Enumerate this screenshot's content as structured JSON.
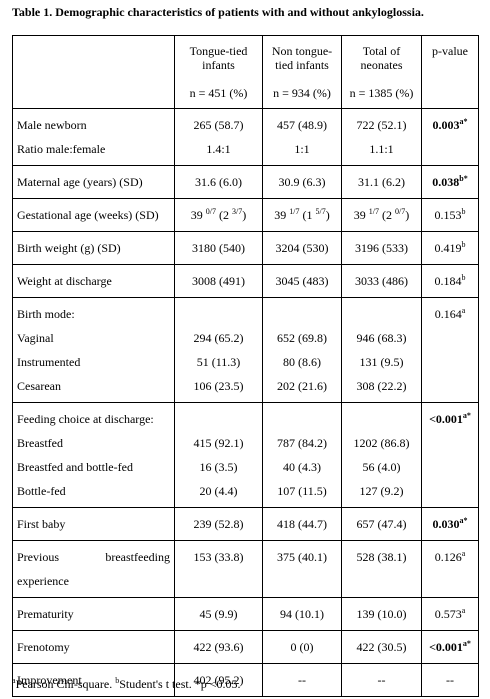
{
  "title": "Table 1. Demographic characteristics of patients with and without ankyloglossia.",
  "table": {
    "columns": [
      {
        "name": null,
        "n": null
      },
      {
        "name": "Tongue-tied infants",
        "n": "n = 451 (%)"
      },
      {
        "name": "Non tongue-tied infants",
        "n": "n = 934 (%)"
      },
      {
        "name": "Total of neonates",
        "n": "n = 1385 (%)"
      },
      {
        "name": "p-value",
        "n": null
      }
    ],
    "groups": [
      {
        "rows": [
          {
            "label": "Male newborn",
            "values": [
              "265 (58.7)",
              "457 (48.9)",
              "722 (52.1)",
              {
                "bold": true,
                "parts": [
                  "0.003",
                  {
                    "sup": "a*"
                  }
                ]
              }
            ]
          },
          {
            "label": "Ratio male:female",
            "values": [
              "1.4:1",
              "1:1",
              "1.1:1",
              null
            ]
          }
        ]
      },
      {
        "rows": [
          {
            "label": "Maternal age (years) (SD)",
            "values": [
              "31.6 (6.0)",
              "30.9 (6.3)",
              "31.1 (6.2)",
              {
                "bold": true,
                "parts": [
                  "0.038",
                  {
                    "sup": "b*"
                  }
                ]
              }
            ]
          }
        ]
      },
      {
        "rows": [
          {
            "label": "Gestational age (weeks) (SD)",
            "values": [
              {
                "parts": [
                  "39 ",
                  {
                    "sup": "0/7"
                  },
                  " (2 ",
                  {
                    "sup": "3/7"
                  },
                  ")"
                ]
              },
              {
                "parts": [
                  "39 ",
                  {
                    "sup": "1/7"
                  },
                  " (1 ",
                  {
                    "sup": "5/7"
                  },
                  ")"
                ]
              },
              {
                "parts": [
                  "39 ",
                  {
                    "sup": "1/7"
                  },
                  " (2 ",
                  {
                    "sup": "0/7"
                  },
                  ")"
                ]
              },
              {
                "parts": [
                  "0.153",
                  {
                    "sup": "b"
                  }
                ]
              }
            ]
          }
        ]
      },
      {
        "rows": [
          {
            "label": "Birth weight (g) (SD)",
            "values": [
              "3180 (540)",
              "3204 (530)",
              "3196 (533)",
              {
                "parts": [
                  "0.419",
                  {
                    "sup": "b"
                  }
                ]
              }
            ]
          }
        ]
      },
      {
        "rows": [
          {
            "label": "Weight at discharge",
            "values": [
              "3008 (491)",
              "3045 (483)",
              "3033 (486)",
              {
                "parts": [
                  "0.184",
                  {
                    "sup": "b"
                  }
                ]
              }
            ]
          }
        ]
      },
      {
        "rows": [
          {
            "label": "Birth mode:",
            "values": [
              null,
              null,
              null,
              {
                "parts": [
                  "0.164",
                  {
                    "sup": "a"
                  }
                ]
              }
            ]
          },
          {
            "label": "Vaginal",
            "indent": true,
            "values": [
              "294 (65.2)",
              "652 (69.8)",
              "946 (68.3)",
              null
            ]
          },
          {
            "label": "Instrumented",
            "indent": true,
            "values": [
              "51 (11.3)",
              "80 (8.6)",
              "131 (9.5)",
              null
            ]
          },
          {
            "label": "Cesarean",
            "indent": true,
            "values": [
              "106 (23.5)",
              "202 (21.6)",
              "308 (22.2)",
              null
            ]
          }
        ]
      },
      {
        "rows": [
          {
            "label": "Feeding choice at discharge:",
            "values": [
              null,
              null,
              null,
              {
                "bold": true,
                "parts": [
                  "<0.001",
                  {
                    "sup": "a*"
                  }
                ]
              }
            ]
          },
          {
            "label": "Breastfed",
            "values": [
              "415 (92.1)",
              "787 (84.2)",
              "1202 (86.8)",
              null
            ]
          },
          {
            "label": "Breastfed and bottle-fed",
            "values": [
              "16 (3.5)",
              "40 (4.3)",
              "56 (4.0)",
              null
            ]
          },
          {
            "label": "Bottle-fed",
            "values": [
              "20 (4.4)",
              "107 (11.5)",
              "127 (9.2)",
              null
            ]
          }
        ]
      },
      {
        "rows": [
          {
            "label": "First baby",
            "values": [
              "239 (52.8)",
              "418 (44.7)",
              "657 (47.4)",
              {
                "bold": true,
                "parts": [
                  "0.030",
                  {
                    "sup": "a*"
                  }
                ]
              }
            ]
          }
        ]
      },
      {
        "rows": [
          {
            "label": "Previous breastfeeding experience",
            "wrap": true,
            "values": [
              "153 (33.8)",
              "375 (40.1)",
              "528 (38.1)",
              {
                "parts": [
                  "0.126",
                  {
                    "sup": "a"
                  }
                ]
              }
            ]
          }
        ]
      },
      {
        "rows": [
          {
            "label": "Prematurity",
            "values": [
              "45 (9.9)",
              "94 (10.1)",
              "139 (10.0)",
              {
                "parts": [
                  "0.573",
                  {
                    "sup": "a"
                  }
                ]
              }
            ]
          }
        ]
      },
      {
        "rows": [
          {
            "label": "Frenotomy",
            "values": [
              "422 (93.6)",
              "0 (0)",
              "422 (30.5)",
              {
                "bold": true,
                "parts": [
                  "<0.001",
                  {
                    "sup": "a*"
                  }
                ]
              }
            ]
          }
        ]
      },
      {
        "rows": [
          {
            "label": "Improvement",
            "values": [
              "402 (95.2)",
              "--",
              "--",
              "--"
            ]
          }
        ]
      }
    ]
  },
  "footnote": {
    "parts": [
      {
        "sup": "a"
      },
      "Pearson Chi-square. ",
      {
        "sup": "b"
      },
      "Student's t test. *p <0.05."
    ]
  }
}
